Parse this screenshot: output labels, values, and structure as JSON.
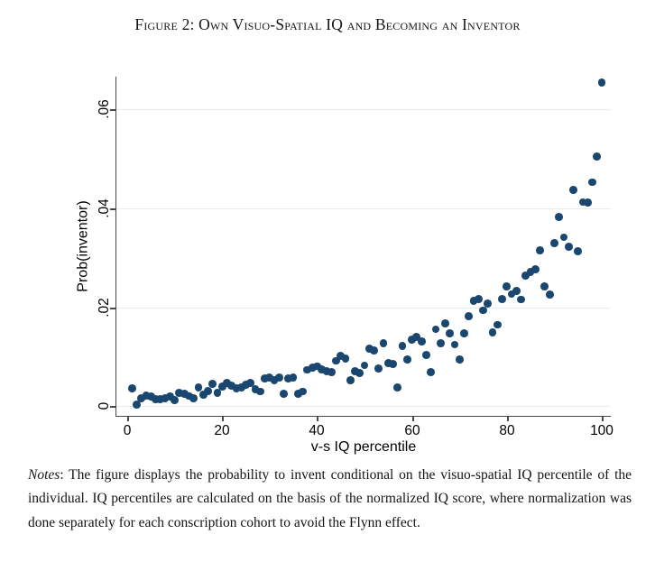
{
  "figure": {
    "title": "Figure 2: Own Visuo-Spatial IQ and Becoming an Inventor"
  },
  "chart_data": {
    "type": "scatter",
    "title": "Figure 2: Own Visuo-Spatial IQ and Becoming an Inventor",
    "xlabel": "v-s IQ percentile",
    "ylabel": "Prob(inventor)",
    "xlim": [
      -2.3,
      102
    ],
    "ylim": [
      0,
      0.0675
    ],
    "grid": "horizontal",
    "legend": "none",
    "marker_color": "#1a476f",
    "grid_color": "#e2edf0",
    "xtick_values": [
      0,
      20,
      40,
      60,
      80,
      100
    ],
    "xtick_labels": [
      "0",
      "20",
      "40",
      "60",
      "80",
      "100"
    ],
    "ytick_values": [
      0,
      0.02,
      0.04,
      0.06
    ],
    "ytick_labels": [
      "0",
      ".02",
      ".04",
      ".06"
    ],
    "x": [
      1,
      2,
      3,
      4,
      5,
      6,
      7,
      8,
      9,
      10,
      11,
      12,
      13,
      14,
      15,
      16,
      17,
      18,
      19,
      20,
      21,
      22,
      23,
      24,
      25,
      26,
      27,
      28,
      29,
      30,
      31,
      32,
      33,
      34,
      35,
      36,
      37,
      38,
      39,
      40,
      41,
      42,
      43,
      44,
      45,
      46,
      47,
      48,
      49,
      50,
      51,
      52,
      53,
      54,
      55,
      56,
      57,
      58,
      59,
      60,
      61,
      62,
      63,
      64,
      65,
      66,
      67,
      68,
      69,
      70,
      71,
      72,
      73,
      74,
      75,
      76,
      77,
      78,
      79,
      80,
      81,
      82,
      83,
      84,
      85,
      86,
      87,
      88,
      89,
      90,
      91,
      92,
      93,
      94,
      95,
      96,
      97,
      98,
      99,
      100
    ],
    "y": [
      0.0036,
      0.0003,
      0.0016,
      0.0022,
      0.002,
      0.0015,
      0.0015,
      0.0016,
      0.002,
      0.0013,
      0.0028,
      0.0025,
      0.0021,
      0.0017,
      0.0038,
      0.0024,
      0.0031,
      0.0045,
      0.0027,
      0.004,
      0.0048,
      0.0042,
      0.0036,
      0.0038,
      0.0044,
      0.0048,
      0.0035,
      0.003,
      0.0056,
      0.0059,
      0.0053,
      0.0059,
      0.0026,
      0.0056,
      0.0059,
      0.0026,
      0.003,
      0.0074,
      0.0078,
      0.0081,
      0.0075,
      0.0071,
      0.007,
      0.0092,
      0.0102,
      0.0097,
      0.0053,
      0.0071,
      0.0068,
      0.0083,
      0.0116,
      0.0113,
      0.0077,
      0.0128,
      0.0087,
      0.0086,
      0.0039,
      0.0122,
      0.0095,
      0.0135,
      0.0141,
      0.0131,
      0.0104,
      0.007,
      0.0156,
      0.0128,
      0.0168,
      0.0148,
      0.0125,
      0.0095,
      0.0148,
      0.0183,
      0.0214,
      0.0217,
      0.0194,
      0.0208,
      0.015,
      0.0165,
      0.0217,
      0.0242,
      0.0227,
      0.0233,
      0.0216,
      0.0264,
      0.0271,
      0.0277,
      0.0315,
      0.0242,
      0.0226,
      0.033,
      0.0383,
      0.0342,
      0.0323,
      0.0437,
      0.0314,
      0.0413,
      0.0412,
      0.0453,
      0.0505,
      0.0655
    ]
  },
  "notes": {
    "label": "Notes",
    "text": ": The figure displays the probability to invent conditional on the visuo-spatial IQ percentile of the individual. IQ percentiles are calculated on the basis of the normalized IQ score, where normalization was done separately for each conscription cohort to avoid the Flynn effect."
  }
}
